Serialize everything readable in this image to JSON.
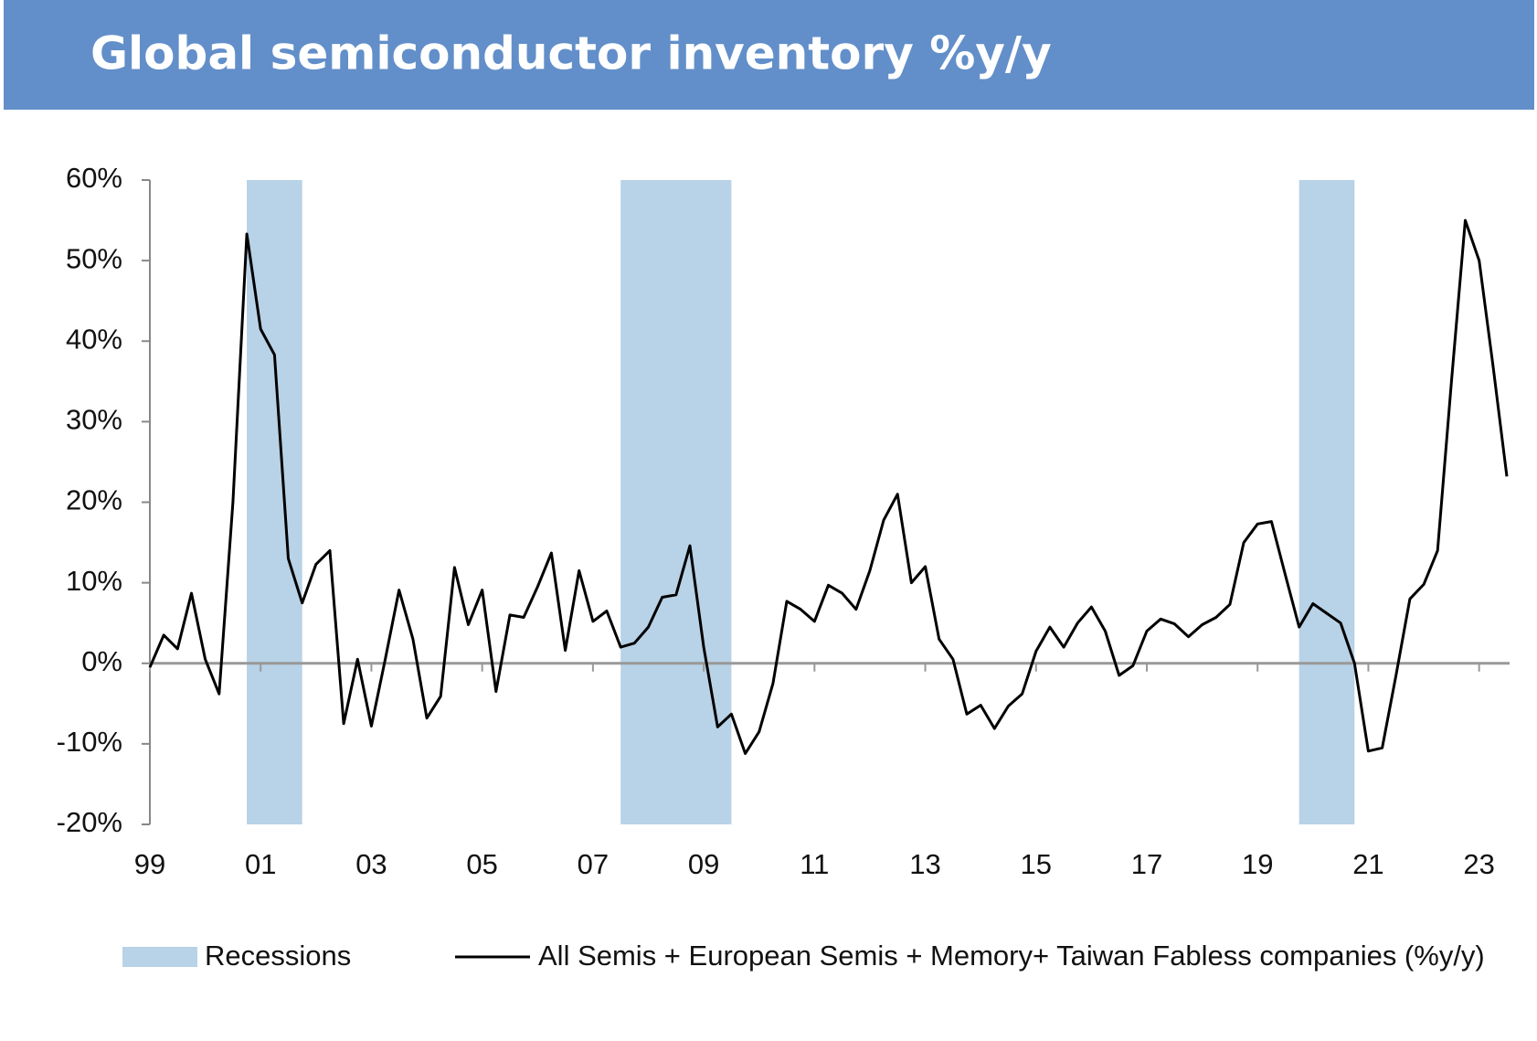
{
  "chart_data": {
    "type": "line",
    "title": "Global semiconductor inventory %y/y",
    "x": [
      1999,
      1999.25,
      1999.5,
      1999.75,
      2000,
      2000.25,
      2000.5,
      2000.75,
      2001,
      2001.25,
      2001.5,
      2001.75,
      2002,
      2002.25,
      2002.5,
      2002.75,
      2003,
      2003.25,
      2003.5,
      2003.75,
      2004,
      2004.25,
      2004.5,
      2004.75,
      2005,
      2005.25,
      2005.5,
      2005.75,
      2006,
      2006.25,
      2006.5,
      2006.75,
      2007,
      2007.25,
      2007.5,
      2007.75,
      2008,
      2008.25,
      2008.5,
      2008.75,
      2009,
      2009.25,
      2009.5,
      2009.75,
      2010,
      2010.25,
      2010.5,
      2010.75,
      2011,
      2011.25,
      2011.5,
      2011.75,
      2012,
      2012.25,
      2012.5,
      2012.75,
      2013,
      2013.25,
      2013.5,
      2013.75,
      2014,
      2014.25,
      2014.5,
      2014.75,
      2015,
      2015.25,
      2015.5,
      2015.75,
      2016,
      2016.25,
      2016.5,
      2016.75,
      2017,
      2017.25,
      2017.5,
      2017.75,
      2018,
      2018.25,
      2018.5,
      2018.75,
      2019,
      2019.25,
      2019.5,
      2019.75,
      2020,
      2020.25,
      2020.5,
      2020.75,
      2021,
      2021.25,
      2021.5,
      2021.75,
      2022,
      2022.25,
      2022.5,
      2022.75,
      2023,
      2023.25,
      2023.5
    ],
    "series": [
      {
        "name": "All Semis + European Semis + Memory+ Taiwan Fabless companies (%y/y)",
        "color": "#000000",
        "values": [
          -0.5,
          3.5,
          1.8,
          8.7,
          0.5,
          -3.8,
          20,
          53.3,
          41.5,
          38.3,
          13,
          7.5,
          12.3,
          14,
          -7.5,
          0.5,
          -7.8,
          0.5,
          9.1,
          3,
          -6.8,
          -4.1,
          11.9,
          4.8,
          9.1,
          -3.5,
          6,
          5.7,
          9.5,
          13.7,
          1.6,
          11.5,
          5.2,
          6.5,
          2,
          2.5,
          4.5,
          8.2,
          8.5,
          14.6,
          2,
          -7.9,
          -6.3,
          -11.2,
          -8.5,
          -2.5,
          7.7,
          6.7,
          5.2,
          9.7,
          8.7,
          6.7,
          11.5,
          17.8,
          21,
          10,
          12,
          3,
          0.5,
          -6.3,
          -5.2,
          -8.1,
          -5.3,
          -3.8,
          1.5,
          4.5,
          2,
          5,
          7,
          4,
          -1.5,
          -0.3,
          4,
          5.5,
          4.9,
          3.3,
          4.8,
          5.7,
          7.3,
          15,
          17.3,
          17.6,
          11,
          4.5,
          7.4,
          6.2,
          5,
          0,
          -10.9,
          -10.5,
          -1.5,
          8,
          9.8,
          14,
          35,
          55,
          50,
          37,
          23.2
        ]
      }
    ],
    "recessions": {
      "name": "Recessions",
      "color": "#b8d2e7",
      "spans": [
        [
          2000.75,
          2001.75
        ],
        [
          2007.5,
          2009.5
        ],
        [
          2019.75,
          2020.75
        ]
      ]
    },
    "xlim": [
      1999,
      2023.55
    ],
    "xticks": [
      {
        "value": 1999,
        "label": "99"
      },
      {
        "value": 2001,
        "label": "01"
      },
      {
        "value": 2003,
        "label": "03"
      },
      {
        "value": 2005,
        "label": "05"
      },
      {
        "value": 2007,
        "label": "07"
      },
      {
        "value": 2009,
        "label": "09"
      },
      {
        "value": 2011,
        "label": "11"
      },
      {
        "value": 2013,
        "label": "13"
      },
      {
        "value": 2015,
        "label": "15"
      },
      {
        "value": 2017,
        "label": "17"
      },
      {
        "value": 2019,
        "label": "19"
      },
      {
        "value": 2021,
        "label": "21"
      },
      {
        "value": 2023,
        "label": "23"
      }
    ],
    "ylim": [
      -20,
      60
    ],
    "yticks": [
      {
        "value": -20,
        "label": "-20%"
      },
      {
        "value": -10,
        "label": "-10%"
      },
      {
        "value": 0,
        "label": "0%"
      },
      {
        "value": 10,
        "label": "10%"
      },
      {
        "value": 20,
        "label": "20%"
      },
      {
        "value": 30,
        "label": "30%"
      },
      {
        "value": 40,
        "label": "40%"
      },
      {
        "value": 50,
        "label": "50%"
      },
      {
        "value": 60,
        "label": "60%"
      }
    ]
  }
}
